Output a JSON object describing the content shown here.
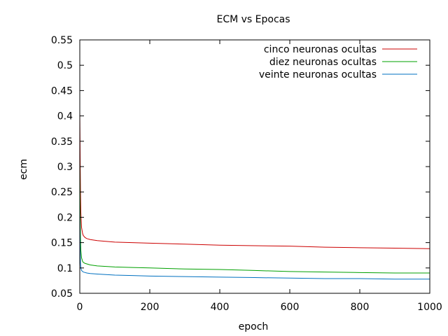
{
  "chart_data": {
    "type": "line",
    "title": "ECM vs Epocas",
    "xlabel": "epoch",
    "ylabel": "ecm",
    "xlim": [
      0,
      1000
    ],
    "ylim": [
      0.05,
      0.55
    ],
    "xticks": [
      0,
      200,
      400,
      600,
      800,
      1000
    ],
    "yticks": [
      0.05,
      0.1,
      0.15,
      0.2,
      0.25,
      0.3,
      0.35,
      0.4,
      0.45,
      0.5,
      0.55
    ],
    "ytick_labels": [
      "0.05",
      "0.1",
      "0.15",
      "0.2",
      "0.25",
      "0.3",
      "0.35",
      "0.4",
      "0.45",
      "0.5",
      "0.55"
    ],
    "xtick_labels": [
      "0",
      "200",
      "400",
      "600",
      "800",
      "1000"
    ],
    "grid": false,
    "legend_position": "top-right",
    "series": [
      {
        "name": "cinco neuronas ocultas",
        "color": "#cc0000",
        "x": [
          0,
          1,
          2,
          3,
          5,
          8,
          10,
          15,
          20,
          30,
          50,
          100,
          150,
          200,
          300,
          400,
          500,
          600,
          700,
          800,
          900,
          1000
        ],
        "y": [
          0.41,
          0.32,
          0.25,
          0.21,
          0.18,
          0.168,
          0.164,
          0.16,
          0.158,
          0.156,
          0.154,
          0.151,
          0.15,
          0.149,
          0.147,
          0.145,
          0.144,
          0.143,
          0.141,
          0.14,
          0.139,
          0.138
        ]
      },
      {
        "name": "diez neuronas ocultas",
        "color": "#00a000",
        "x": [
          0,
          1,
          2,
          3,
          5,
          8,
          10,
          15,
          20,
          30,
          50,
          100,
          150,
          200,
          300,
          400,
          500,
          600,
          700,
          800,
          900,
          1000
        ],
        "y": [
          0.32,
          0.22,
          0.16,
          0.135,
          0.12,
          0.113,
          0.111,
          0.109,
          0.108,
          0.106,
          0.104,
          0.102,
          0.101,
          0.1,
          0.098,
          0.097,
          0.095,
          0.093,
          0.092,
          0.091,
          0.09,
          0.09
        ]
      },
      {
        "name": "veinte neuronas ocultas",
        "color": "#0070c0",
        "x": [
          0,
          1,
          2,
          3,
          5,
          8,
          10,
          15,
          20,
          30,
          50,
          100,
          150,
          200,
          300,
          400,
          500,
          600,
          700,
          800,
          900,
          1000
        ],
        "y": [
          0.22,
          0.14,
          0.11,
          0.1,
          0.095,
          0.093,
          0.092,
          0.091,
          0.09,
          0.089,
          0.088,
          0.086,
          0.085,
          0.084,
          0.083,
          0.082,
          0.081,
          0.08,
          0.079,
          0.079,
          0.078,
          0.078
        ]
      }
    ]
  }
}
